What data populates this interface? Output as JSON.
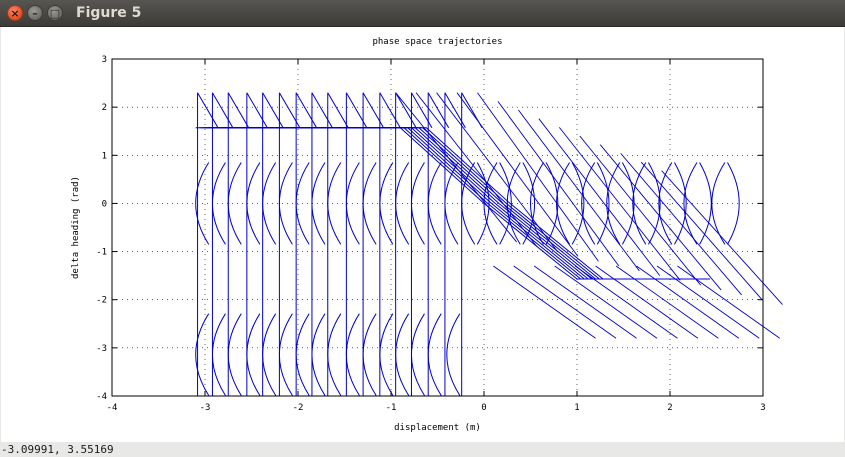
{
  "window": {
    "title": "Figure 5",
    "close_glyph": "×",
    "minimize_glyph": "–",
    "maximize_glyph": "□"
  },
  "status": {
    "coordinates": "-3.09991,  3.55169"
  },
  "chart_data": {
    "type": "line",
    "title": "phase space trajectories",
    "xlabel": "displacement (m)",
    "ylabel": "delta heading (rad)",
    "xlim": [
      -4,
      3
    ],
    "ylim": [
      -4,
      3
    ],
    "xticks": [
      "-4",
      "-3",
      "-2",
      "-1",
      "0",
      "1",
      "2",
      "3"
    ],
    "yticks": [
      "-4",
      "-3",
      "-2",
      "-1",
      "0",
      "1",
      "2",
      "3"
    ],
    "grid": true,
    "line_color": "#0000cc",
    "switching_line": {
      "saturation": 1.5708,
      "x": [
        -3.1,
        -0.9,
        0,
        1.0,
        2.15
      ],
      "y": [
        1.5708,
        1.5708,
        0,
        -1.5708,
        -1.5708
      ]
    },
    "vertical_segments": {
      "x": [
        -3.08,
        -2.92,
        -2.75,
        -2.55,
        -2.38,
        -2.2,
        -2.02,
        -1.85,
        -1.68,
        -1.48,
        -1.3,
        -1.12,
        -0.95,
        -0.78,
        -0.6,
        -0.42,
        -0.24
      ],
      "y_range": [
        -4,
        2.3
      ]
    },
    "arc_centers": [
      {
        "x": -3.1,
        "y": 0
      },
      {
        "x": -2.92,
        "y": 0
      },
      {
        "x": -2.75,
        "y": 0
      },
      {
        "x": -2.55,
        "y": 0
      },
      {
        "x": -2.38,
        "y": 0
      },
      {
        "x": -2.2,
        "y": 0
      },
      {
        "x": -2.02,
        "y": 0
      },
      {
        "x": -1.85,
        "y": 0
      },
      {
        "x": -1.68,
        "y": 0
      },
      {
        "x": -1.48,
        "y": 0
      },
      {
        "x": -1.3,
        "y": 0
      },
      {
        "x": -1.12,
        "y": 0
      },
      {
        "x": -0.95,
        "y": 0
      },
      {
        "x": -0.78,
        "y": 0
      },
      {
        "x": -0.6,
        "y": 0
      },
      {
        "x": -0.42,
        "y": 0
      },
      {
        "x": -0.24,
        "y": 0
      },
      {
        "x": 0.0,
        "y": 0
      },
      {
        "x": 0.25,
        "y": 0
      },
      {
        "x": 0.5,
        "y": 0
      },
      {
        "x": 0.78,
        "y": 0
      },
      {
        "x": 1.05,
        "y": 0
      },
      {
        "x": 1.32,
        "y": 0
      },
      {
        "x": 1.6,
        "y": 0
      },
      {
        "x": 1.88,
        "y": 0
      },
      {
        "x": 2.15,
        "y": 0
      },
      {
        "x": 2.45,
        "y": 0
      },
      {
        "x": -3.1,
        "y": -3.14
      },
      {
        "x": -2.92,
        "y": -3.14
      },
      {
        "x": -2.75,
        "y": -3.14
      },
      {
        "x": -2.55,
        "y": -3.14
      },
      {
        "x": -2.38,
        "y": -3.14
      },
      {
        "x": -2.2,
        "y": -3.14
      },
      {
        "x": -2.02,
        "y": -3.14
      },
      {
        "x": -1.85,
        "y": -3.14
      },
      {
        "x": -1.68,
        "y": -3.14
      },
      {
        "x": -1.48,
        "y": -3.14
      },
      {
        "x": -1.3,
        "y": -3.14
      },
      {
        "x": -1.12,
        "y": -3.14
      },
      {
        "x": -0.95,
        "y": -3.14
      },
      {
        "x": -0.78,
        "y": -3.14
      },
      {
        "x": -0.6,
        "y": -3.14
      },
      {
        "x": -0.4,
        "y": -3.14
      }
    ]
  }
}
